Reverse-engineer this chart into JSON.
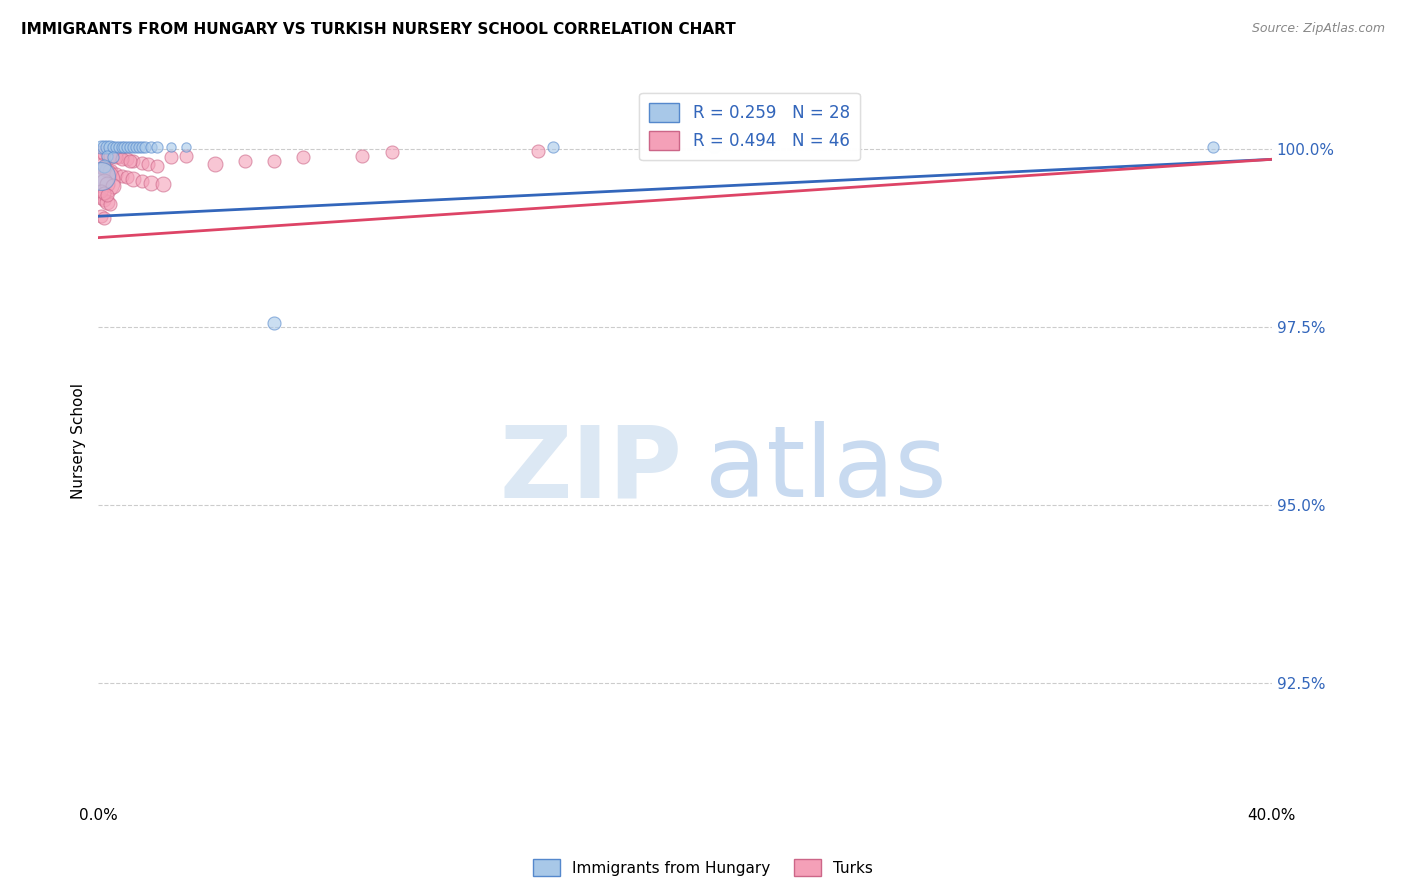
{
  "title": "IMMIGRANTS FROM HUNGARY VS TURKISH NURSERY SCHOOL CORRELATION CHART",
  "source": "Source: ZipAtlas.com",
  "ylabel": "Nursery School",
  "ylabel_ticks": [
    "100.0%",
    "97.5%",
    "95.0%",
    "92.5%"
  ],
  "ylabel_values": [
    1.0,
    0.975,
    0.95,
    0.925
  ],
  "xlim": [
    0.0,
    0.4
  ],
  "ylim": [
    0.908,
    1.01
  ],
  "legend_blue_label": "R = 0.259   N = 28",
  "legend_pink_label": "R = 0.494   N = 46",
  "legend_bottom_blue": "Immigrants from Hungary",
  "legend_bottom_pink": "Turks",
  "blue_color": "#a8c8e8",
  "pink_color": "#f4a0b8",
  "blue_edge_color": "#5588cc",
  "pink_edge_color": "#cc6688",
  "blue_line_color": "#3366bb",
  "pink_line_color": "#dd4466",
  "blue_points": [
    [
      0.001,
      1.0002,
      7
    ],
    [
      0.002,
      1.0002,
      7
    ],
    [
      0.003,
      1.0002,
      7
    ],
    [
      0.004,
      1.0002,
      7
    ],
    [
      0.005,
      1.0002,
      6
    ],
    [
      0.006,
      1.0002,
      6
    ],
    [
      0.007,
      1.0002,
      6
    ],
    [
      0.008,
      1.0002,
      6
    ],
    [
      0.009,
      1.0002,
      6
    ],
    [
      0.01,
      1.0002,
      6
    ],
    [
      0.011,
      1.0002,
      6
    ],
    [
      0.012,
      1.0002,
      6
    ],
    [
      0.013,
      1.0002,
      6
    ],
    [
      0.014,
      1.0002,
      6
    ],
    [
      0.015,
      1.0002,
      6
    ],
    [
      0.016,
      1.0002,
      6
    ],
    [
      0.018,
      1.0002,
      6
    ],
    [
      0.02,
      1.0002,
      6
    ],
    [
      0.025,
      1.0002,
      5
    ],
    [
      0.03,
      1.0002,
      5
    ],
    [
      0.003,
      0.999,
      6
    ],
    [
      0.005,
      0.9988,
      6
    ],
    [
      0.002,
      0.9975,
      7
    ],
    [
      0.001,
      0.9962,
      15
    ],
    [
      0.06,
      0.9755,
      7
    ],
    [
      0.155,
      1.0002,
      6
    ],
    [
      0.21,
      1.0002,
      6
    ],
    [
      0.38,
      1.0002,
      6
    ]
  ],
  "pink_points": [
    [
      0.001,
      0.9995,
      7
    ],
    [
      0.003,
      0.9993,
      7
    ],
    [
      0.005,
      0.999,
      7
    ],
    [
      0.007,
      0.9988,
      7
    ],
    [
      0.01,
      0.9985,
      7
    ],
    [
      0.012,
      0.9983,
      7
    ],
    [
      0.015,
      0.998,
      7
    ],
    [
      0.017,
      0.9978,
      7
    ],
    [
      0.02,
      0.9975,
      7
    ],
    [
      0.002,
      0.9992,
      7
    ],
    [
      0.004,
      0.999,
      7
    ],
    [
      0.006,
      0.9988,
      7
    ],
    [
      0.008,
      0.9985,
      7
    ],
    [
      0.011,
      0.9983,
      7
    ],
    [
      0.025,
      0.9988,
      7
    ],
    [
      0.03,
      0.999,
      7
    ],
    [
      0.001,
      0.9975,
      8
    ],
    [
      0.002,
      0.9973,
      8
    ],
    [
      0.003,
      0.997,
      8
    ],
    [
      0.004,
      0.9968,
      8
    ],
    [
      0.006,
      0.9965,
      7
    ],
    [
      0.008,
      0.9962,
      7
    ],
    [
      0.01,
      0.996,
      7
    ],
    [
      0.012,
      0.9958,
      8
    ],
    [
      0.015,
      0.9955,
      7
    ],
    [
      0.018,
      0.9952,
      8
    ],
    [
      0.022,
      0.995,
      8
    ],
    [
      0.001,
      0.9955,
      20
    ],
    [
      0.002,
      0.9953,
      9
    ],
    [
      0.003,
      0.995,
      8
    ],
    [
      0.005,
      0.9948,
      8
    ],
    [
      0.04,
      0.9978,
      8
    ],
    [
      0.001,
      0.993,
      7
    ],
    [
      0.002,
      0.9928,
      7
    ],
    [
      0.003,
      0.9925,
      8
    ],
    [
      0.004,
      0.9922,
      7
    ],
    [
      0.1,
      0.9995,
      7
    ],
    [
      0.07,
      0.9988,
      7
    ],
    [
      0.09,
      0.999,
      7
    ],
    [
      0.001,
      0.9905,
      7
    ],
    [
      0.002,
      0.9902,
      7
    ],
    [
      0.05,
      0.9982,
      7
    ],
    [
      0.06,
      0.9983,
      7
    ],
    [
      0.15,
      0.9997,
      7
    ],
    [
      0.001,
      0.994,
      7
    ],
    [
      0.002,
      0.9938,
      7
    ],
    [
      0.003,
      0.9935,
      7
    ]
  ],
  "blue_line": [
    [
      0.0,
      0.4
    ],
    [
      0.9905,
      0.9985
    ]
  ],
  "pink_line": [
    [
      0.0,
      0.4
    ],
    [
      0.9875,
      0.9985
    ]
  ],
  "watermark_zip": "ZIP",
  "watermark_atlas": "atlas",
  "background_color": "#ffffff",
  "grid_color": "#cccccc"
}
